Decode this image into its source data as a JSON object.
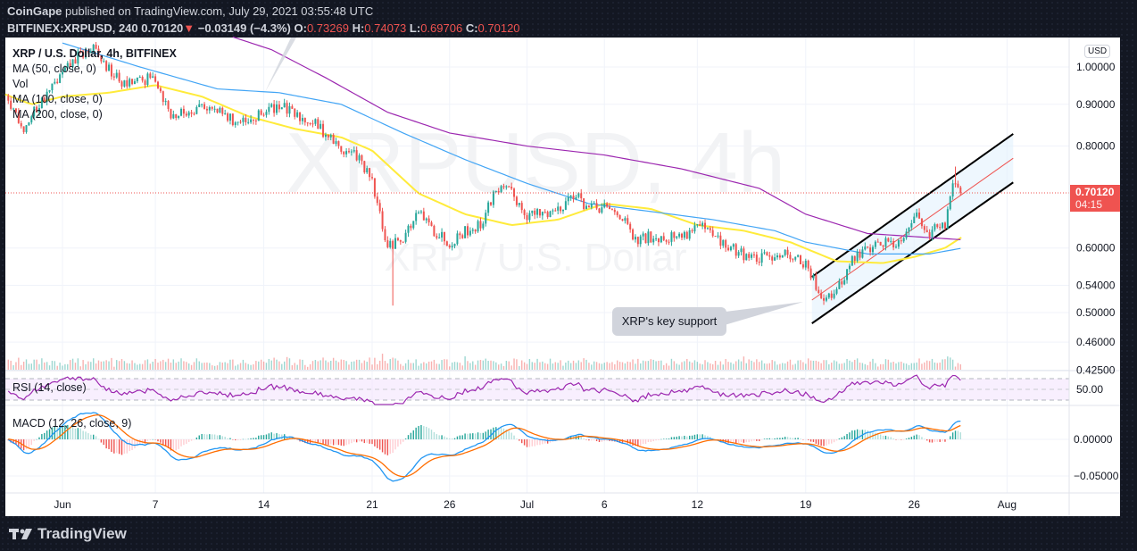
{
  "header": {
    "publisher": "CoinGape",
    "published_text": "published on TradingView.com, July 29, 2021 03:55:48 UTC",
    "symbol": "BITFINEX:XRPUSD, 240",
    "last": "0.70120",
    "change": "−0.03149 (−4.3%)",
    "o_label": "O:",
    "o": "0.73269",
    "h_label": "H:",
    "h": "0.74073",
    "l_label": "L:",
    "l": "0.69706",
    "c_label": "C:",
    "c": "0.70120"
  },
  "legend": {
    "title": "XRP / U.S. Dollar, 4h, BITFINEX",
    "ma50": "MA (50, close, 0)",
    "vol": "Vol",
    "ma100": "MA (100, close, 0)",
    "ma200": "MA (200, close, 0)",
    "rsi": "RSI (14, close)",
    "macd": "MACD (12, 26, close, 9)"
  },
  "watermark": {
    "line1": "XRPUSD, 4h",
    "line2": "XRP / U.S. Dollar"
  },
  "price_axis": {
    "currency": "USD",
    "ticks": [
      "1.00000",
      "0.90000",
      "0.80000",
      "0.60000",
      "0.54000",
      "0.50000",
      "0.46000",
      "0.42500"
    ],
    "current_price": "0.70120",
    "countdown": "04:15",
    "rsi_tick": "50.00",
    "macd_ticks": [
      "0.00000",
      "−0.05000"
    ]
  },
  "annotation": {
    "text": "XRP's key support"
  },
  "footer": {
    "brand": "TradingView"
  },
  "colors": {
    "up": "#26a69a",
    "down": "#ef5350",
    "ma50": "#ffeb3b",
    "ma100": "#42a5f5",
    "ma200": "#9c27b0",
    "macd": "#2196f3",
    "signal": "#ff6d00",
    "rsi": "#9c27b0"
  },
  "chart_data": {
    "type": "candlestick",
    "title": "XRP / U.S. Dollar, 4h, BITFINEX",
    "scale": "log",
    "y_ticks": [
      1.0,
      0.9,
      0.8,
      0.6,
      0.54,
      0.5,
      0.46,
      0.425
    ],
    "x_ticks": [
      {
        "label": "Jun",
        "day": 0
      },
      {
        "label": "7",
        "day": 6
      },
      {
        "label": "14",
        "day": 13
      },
      {
        "label": "21",
        "day": 20
      },
      {
        "label": "26",
        "day": 25
      },
      {
        "label": "Jul",
        "day": 30
      },
      {
        "label": "6",
        "day": 35
      },
      {
        "label": "12",
        "day": 41
      },
      {
        "label": "19",
        "day": 48
      },
      {
        "label": "26",
        "day": 55
      },
      {
        "label": "Aug",
        "day": 61
      }
    ],
    "x_unit": "days since Jun 1 2021",
    "close_anchors": [
      [
        -4,
        0.92
      ],
      [
        -3,
        0.88
      ],
      [
        -2.5,
        0.84
      ],
      [
        -1.5,
        0.9
      ],
      [
        0,
        0.98
      ],
      [
        1,
        1.03
      ],
      [
        2,
        1.05
      ],
      [
        3,
        0.99
      ],
      [
        4,
        0.95
      ],
      [
        5,
        0.96
      ],
      [
        6,
        0.97
      ],
      [
        7,
        0.87
      ],
      [
        8,
        0.88
      ],
      [
        9,
        0.9
      ],
      [
        10,
        0.88
      ],
      [
        11,
        0.86
      ],
      [
        12,
        0.85
      ],
      [
        13,
        0.88
      ],
      [
        14,
        0.9
      ],
      [
        15,
        0.87
      ],
      [
        16,
        0.86
      ],
      [
        17,
        0.83
      ],
      [
        18,
        0.79
      ],
      [
        19,
        0.78
      ],
      [
        20,
        0.72
      ],
      [
        21,
        0.6
      ],
      [
        22,
        0.62
      ],
      [
        23,
        0.66
      ],
      [
        24,
        0.63
      ],
      [
        25,
        0.61
      ],
      [
        26,
        0.63
      ],
      [
        27,
        0.64
      ],
      [
        28,
        0.71
      ],
      [
        29,
        0.7
      ],
      [
        30,
        0.66
      ],
      [
        31,
        0.66
      ],
      [
        32,
        0.67
      ],
      [
        33,
        0.7
      ],
      [
        34,
        0.67
      ],
      [
        35,
        0.67
      ],
      [
        36,
        0.66
      ],
      [
        37,
        0.61
      ],
      [
        38,
        0.62
      ],
      [
        39,
        0.62
      ],
      [
        40,
        0.62
      ],
      [
        41,
        0.64
      ],
      [
        42,
        0.62
      ],
      [
        43,
        0.6
      ],
      [
        44,
        0.59
      ],
      [
        45,
        0.58
      ],
      [
        46,
        0.59
      ],
      [
        47,
        0.59
      ],
      [
        48,
        0.57
      ],
      [
        49,
        0.525
      ],
      [
        50,
        0.53
      ],
      [
        51,
        0.58
      ],
      [
        52,
        0.6
      ],
      [
        53,
        0.61
      ],
      [
        54,
        0.61
      ],
      [
        55,
        0.66
      ],
      [
        56,
        0.63
      ],
      [
        57,
        0.64
      ],
      [
        57.5,
        0.73
      ],
      [
        58.16,
        0.7012
      ]
    ],
    "spikes": [
      {
        "day": 21.3,
        "low": 0.51
      },
      {
        "day": 49.3,
        "low": 0.515
      },
      {
        "day": 57.7,
        "high": 0.755
      }
    ],
    "ma50": [
      [
        -4,
        0.93
      ],
      [
        -2,
        0.9
      ],
      [
        0,
        0.92
      ],
      [
        3,
        0.93
      ],
      [
        6,
        0.95
      ],
      [
        9,
        0.92
      ],
      [
        12,
        0.87
      ],
      [
        15,
        0.84
      ],
      [
        18,
        0.82
      ],
      [
        20,
        0.79
      ],
      [
        23,
        0.7
      ],
      [
        26,
        0.66
      ],
      [
        29,
        0.64
      ],
      [
        32,
        0.65
      ],
      [
        35,
        0.68
      ],
      [
        38,
        0.67
      ],
      [
        41,
        0.64
      ],
      [
        44,
        0.63
      ],
      [
        47,
        0.61
      ],
      [
        50,
        0.578
      ],
      [
        53,
        0.575
      ],
      [
        55,
        0.585
      ],
      [
        57,
        0.6
      ],
      [
        58.16,
        0.62
      ]
    ],
    "ma100": [
      [
        0,
        1.07
      ],
      [
        5,
        1.0
      ],
      [
        10,
        0.94
      ],
      [
        14,
        0.93
      ],
      [
        18,
        0.9
      ],
      [
        22,
        0.83
      ],
      [
        26,
        0.77
      ],
      [
        30,
        0.72
      ],
      [
        34,
        0.68
      ],
      [
        38,
        0.665
      ],
      [
        42,
        0.65
      ],
      [
        46,
        0.63
      ],
      [
        48,
        0.61
      ],
      [
        52,
        0.59
      ],
      [
        56,
        0.59
      ],
      [
        58.16,
        0.6
      ]
    ],
    "ma200": [
      [
        9,
        1.12
      ],
      [
        13.5,
        1.05
      ],
      [
        17,
        0.97
      ],
      [
        21,
        0.88
      ],
      [
        25,
        0.83
      ],
      [
        30,
        0.8
      ],
      [
        35,
        0.78
      ],
      [
        40,
        0.75
      ],
      [
        45,
        0.71
      ],
      [
        48,
        0.66
      ],
      [
        52,
        0.625
      ],
      [
        58.16,
        0.614
      ]
    ],
    "channel": {
      "upper": [
        [
          48.4,
          0.553
        ],
        [
          61.4,
          0.828
        ]
      ],
      "middle": [
        [
          48.4,
          0.518
        ],
        [
          61.4,
          0.773
        ]
      ],
      "lower": [
        [
          48.4,
          0.485
        ],
        [
          61.4,
          0.722
        ]
      ]
    },
    "rsi_bands": [
      30,
      50,
      70
    ],
    "macd_ticks": [
      0,
      -0.05
    ]
  }
}
